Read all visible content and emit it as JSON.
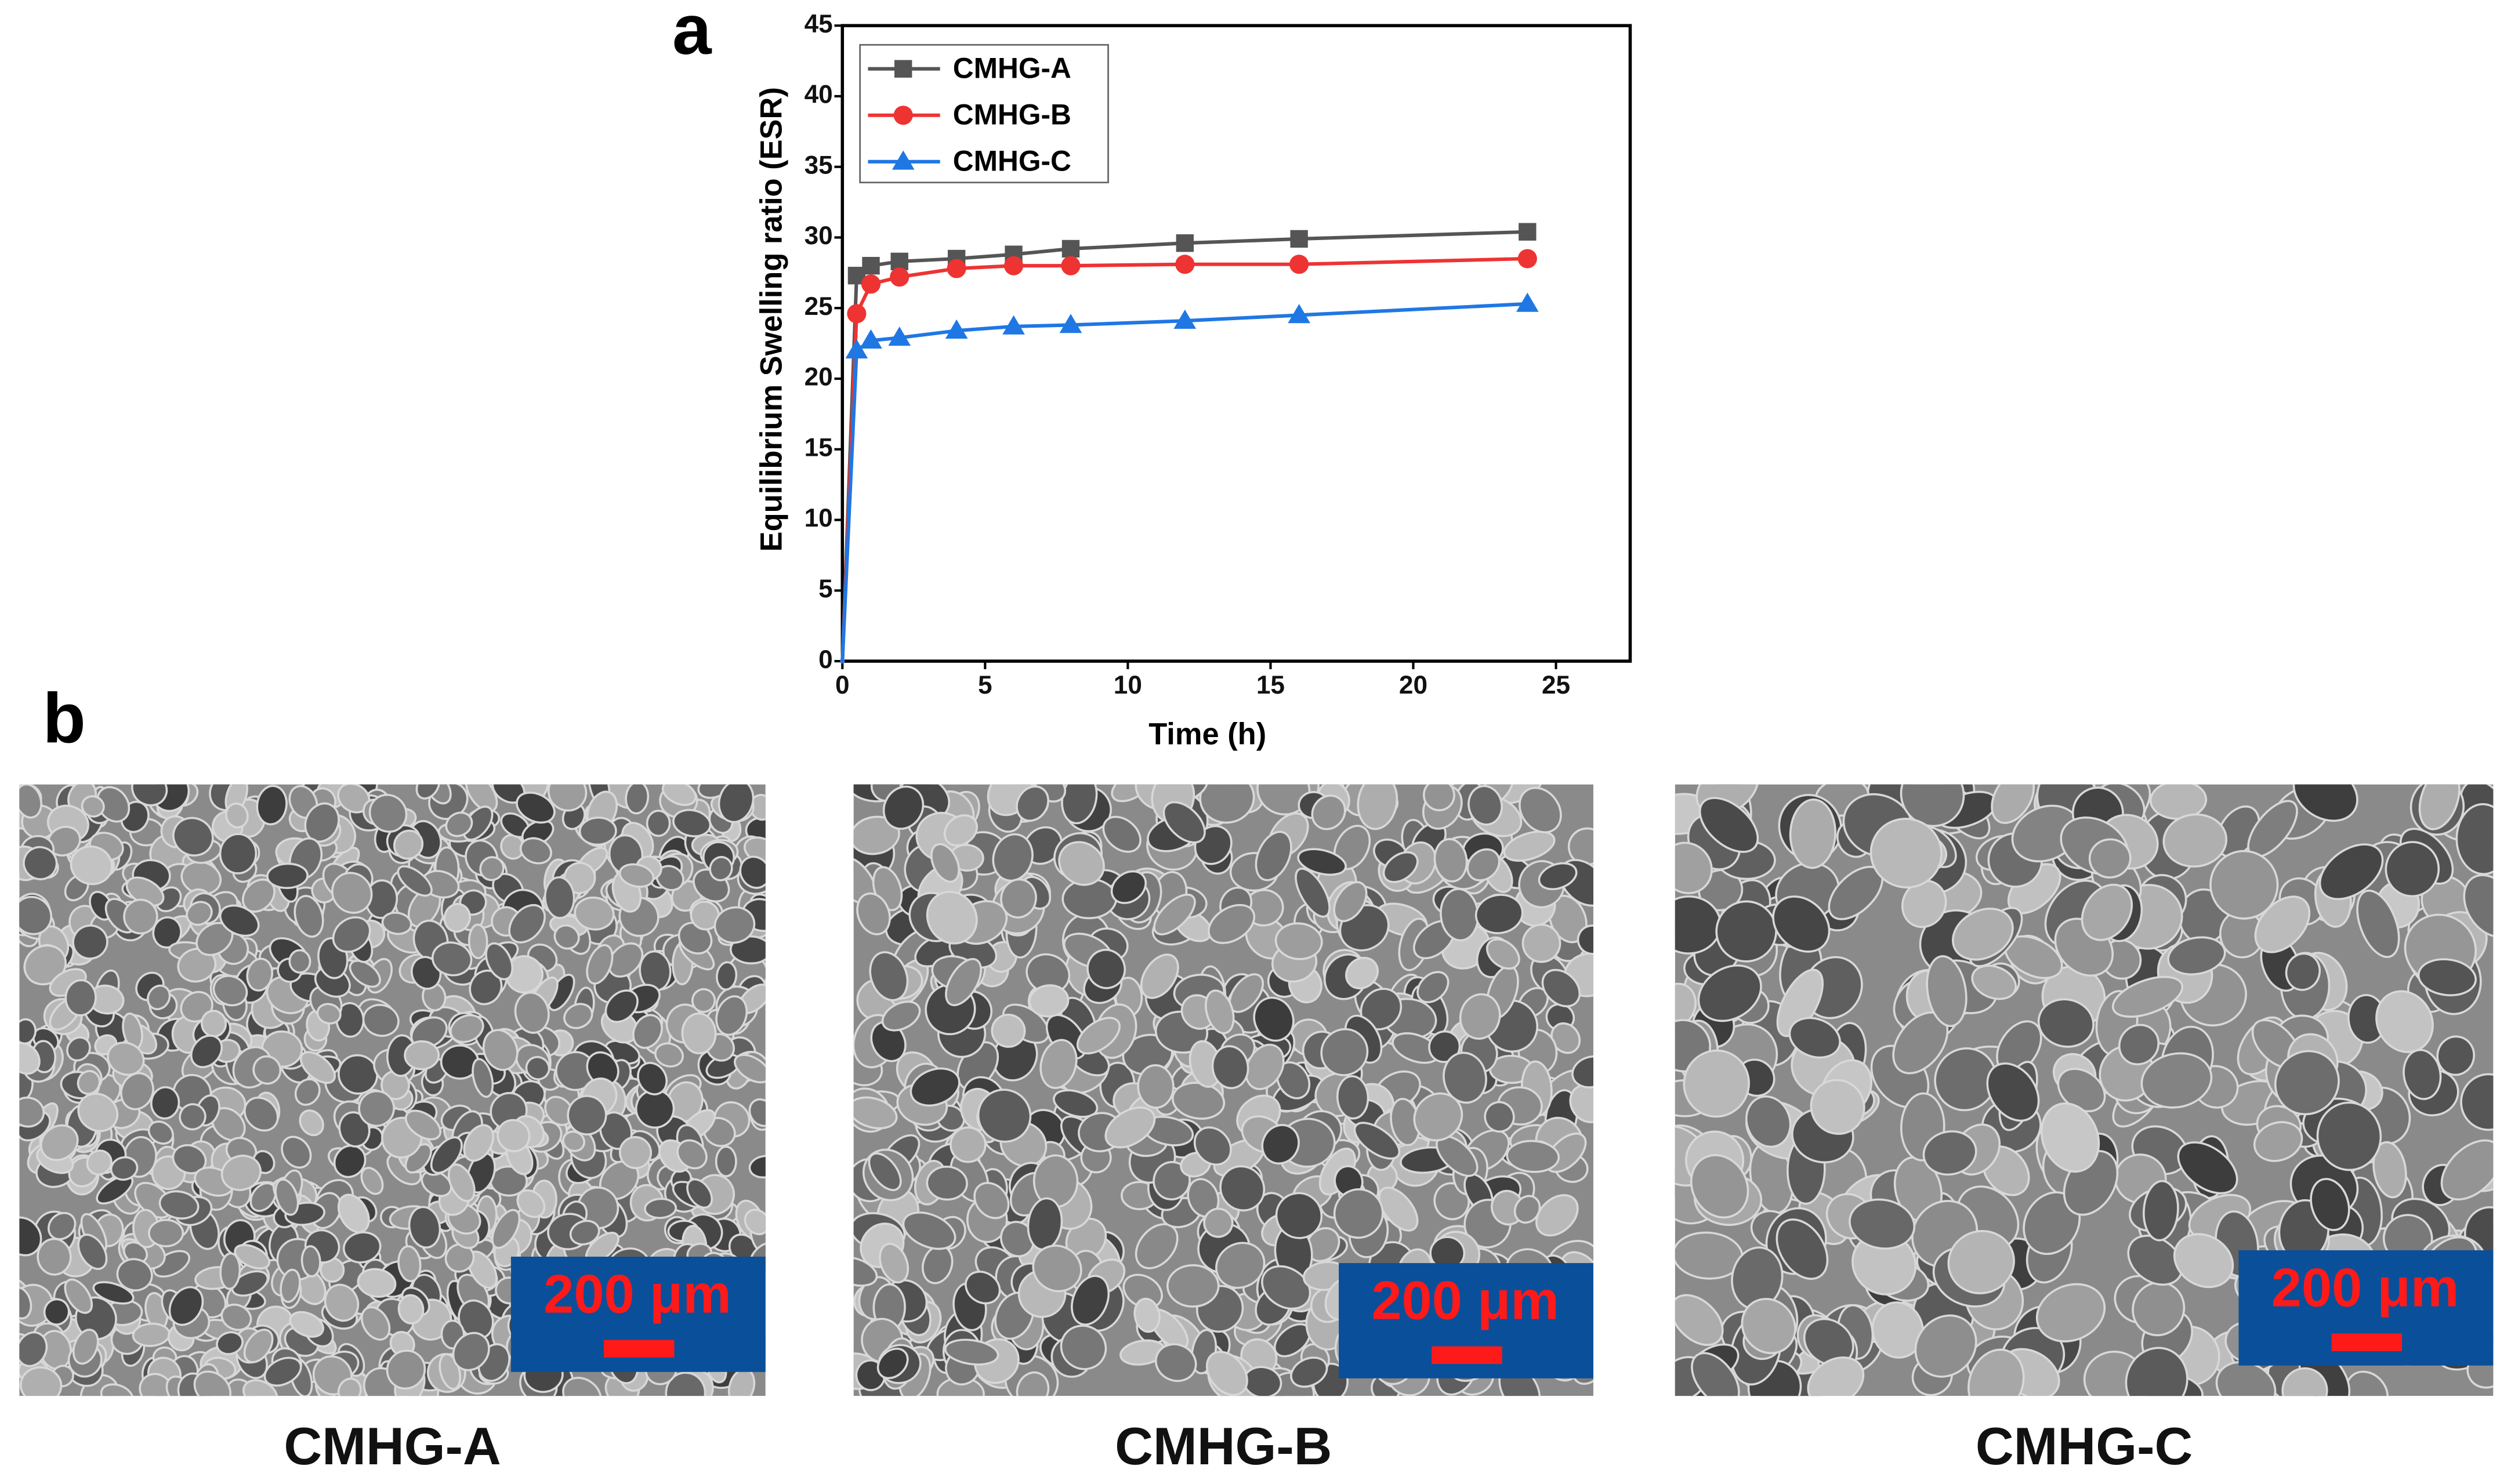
{
  "chart_data": {
    "type": "line",
    "x_label": "Time (h)",
    "y_label": "Equilibrium Swelling ratio (ESR)",
    "x": [
      0,
      0.5,
      1,
      2,
      4,
      6,
      8,
      12,
      16,
      24
    ],
    "series": [
      {
        "name": "CMHG-A",
        "color": "#555555",
        "marker": "square",
        "values": [
          0,
          27.3,
          28,
          28.3,
          28.5,
          28.8,
          29.2,
          29.6,
          29.9,
          30.4
        ]
      },
      {
        "name": "CMHG-B",
        "color": "#ee3333",
        "marker": "circle",
        "values": [
          0,
          24.6,
          26.7,
          27.2,
          27.8,
          28,
          28,
          28.1,
          28.1,
          28.5
        ]
      },
      {
        "name": "CMHG-C",
        "color": "#1f77e4",
        "marker": "triangle",
        "values": [
          0,
          22,
          22.7,
          22.9,
          23.4,
          23.7,
          23.8,
          24.1,
          24.5,
          25.3
        ]
      }
    ],
    "xlim": [
      0,
      27.6
    ],
    "ylim": [
      0,
      45
    ],
    "xticks": [
      0,
      5,
      10,
      15,
      20,
      25
    ],
    "yticks": [
      0,
      5,
      10,
      15,
      20,
      25,
      30,
      35,
      40,
      45
    ],
    "legend": "upper left",
    "grid": false
  },
  "panels": {
    "a": "a",
    "b": "b"
  },
  "images": [
    {
      "caption": "CMHG-A",
      "scale_bar": "200 μm"
    },
    {
      "caption": "CMHG-B",
      "scale_bar": "200 μm"
    },
    {
      "caption": "CMHG-C",
      "scale_bar": "200 μm"
    }
  ]
}
